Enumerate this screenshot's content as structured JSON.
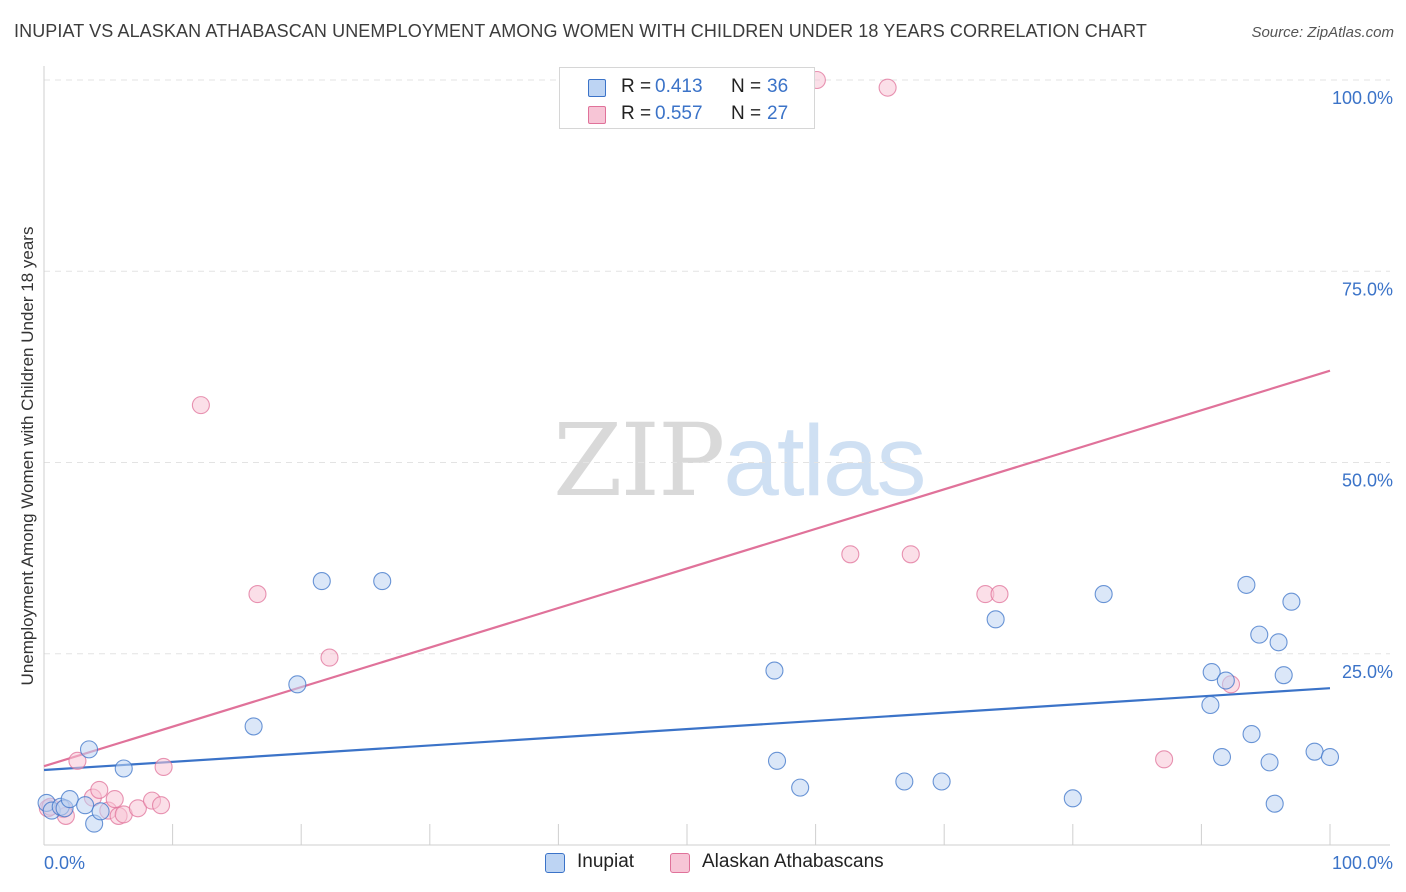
{
  "title": "INUPIAT VS ALASKAN ATHABASCAN UNEMPLOYMENT AMONG WOMEN WITH CHILDREN UNDER 18 YEARS CORRELATION CHART",
  "source": "Source: ZipAtlas.com",
  "watermark": {
    "zip": "ZIP",
    "atlas": "atlas"
  },
  "colors": {
    "inupiat": "#3b73c8",
    "inupiat_fill": "#bdd4f3",
    "athabascan": "#e0729a",
    "athabascan_fill": "#f7c5d6",
    "grid": "#e3e3e3",
    "tick_label": "#3b73c8"
  },
  "legend": {
    "rows": [
      {
        "r_label": "R =",
        "r_value": "0.413",
        "n_label": "N =",
        "n_value": "36"
      },
      {
        "r_label": "R =",
        "r_value": "0.557",
        "n_label": "N =",
        "n_value": "27"
      }
    ]
  },
  "bottom_legend": [
    "Inupiat",
    "Alaskan Athabascans"
  ],
  "chart_data": {
    "type": "scatter",
    "title": "INUPIAT VS ALASKAN ATHABASCAN UNEMPLOYMENT AMONG WOMEN WITH CHILDREN UNDER 18 YEARS CORRELATION CHART",
    "xlabel": "",
    "ylabel": "Unemployment Among Women with Children Under 18 years",
    "xlim": [
      0,
      100
    ],
    "ylim": [
      0,
      100
    ],
    "x_tick_labels": [
      "0.0%",
      "100.0%"
    ],
    "y_tick_labels": [
      "25.0%",
      "50.0%",
      "75.0%",
      "100.0%"
    ],
    "y_ticks": [
      25,
      50,
      75,
      100
    ],
    "grid": true,
    "legend_position": "top-center",
    "series": [
      {
        "name": "Inupiat",
        "r": 0.413,
        "n": 36,
        "trend": {
          "x": [
            0,
            100
          ],
          "y": [
            9.8,
            20.5
          ]
        },
        "points": [
          [
            0.2,
            5.5
          ],
          [
            0.6,
            4.5
          ],
          [
            1.3,
            5.0
          ],
          [
            1.6,
            4.8
          ],
          [
            2.0,
            6.0
          ],
          [
            3.2,
            5.2
          ],
          [
            3.5,
            12.5
          ],
          [
            3.9,
            2.8
          ],
          [
            4.4,
            4.4
          ],
          [
            6.2,
            10.0
          ],
          [
            16.3,
            15.5
          ],
          [
            19.7,
            21.0
          ],
          [
            21.6,
            34.5
          ],
          [
            26.3,
            34.5
          ],
          [
            56.8,
            22.8
          ],
          [
            57.0,
            11.0
          ],
          [
            58.8,
            7.5
          ],
          [
            66.9,
            8.3
          ],
          [
            69.8,
            8.3
          ],
          [
            74.0,
            29.5
          ],
          [
            80.0,
            6.1
          ],
          [
            82.4,
            32.8
          ],
          [
            90.7,
            18.3
          ],
          [
            90.8,
            22.6
          ],
          [
            91.6,
            11.5
          ],
          [
            91.9,
            21.5
          ],
          [
            93.5,
            34.0
          ],
          [
            93.9,
            14.5
          ],
          [
            94.5,
            27.5
          ],
          [
            95.3,
            10.8
          ],
          [
            95.7,
            5.4
          ],
          [
            96.0,
            26.5
          ],
          [
            96.4,
            22.2
          ],
          [
            97.0,
            31.8
          ],
          [
            98.8,
            12.2
          ],
          [
            100.0,
            11.5
          ]
        ]
      },
      {
        "name": "Alaskan Athabascans",
        "r": 0.557,
        "n": 27,
        "trend": {
          "x": [
            0,
            100
          ],
          "y": [
            10.3,
            62.0
          ]
        },
        "points": [
          [
            0.3,
            4.8
          ],
          [
            0.5,
            5.0
          ],
          [
            1.5,
            4.7
          ],
          [
            1.7,
            3.8
          ],
          [
            2.6,
            11.0
          ],
          [
            3.8,
            6.2
          ],
          [
            4.3,
            7.2
          ],
          [
            5.0,
            4.5
          ],
          [
            5.8,
            3.8
          ],
          [
            6.2,
            4.0
          ],
          [
            5.5,
            6.0
          ],
          [
            7.3,
            4.8
          ],
          [
            8.4,
            5.8
          ],
          [
            9.1,
            5.2
          ],
          [
            9.3,
            10.2
          ],
          [
            12.2,
            57.5
          ],
          [
            16.6,
            32.8
          ],
          [
            22.2,
            24.5
          ],
          [
            50.6,
            100.0
          ],
          [
            60.1,
            100.0
          ],
          [
            62.7,
            38.0
          ],
          [
            65.6,
            99.0
          ],
          [
            67.4,
            38.0
          ],
          [
            73.2,
            32.8
          ],
          [
            74.3,
            32.8
          ],
          [
            87.1,
            11.2
          ],
          [
            92.3,
            21.0
          ]
        ]
      }
    ]
  }
}
